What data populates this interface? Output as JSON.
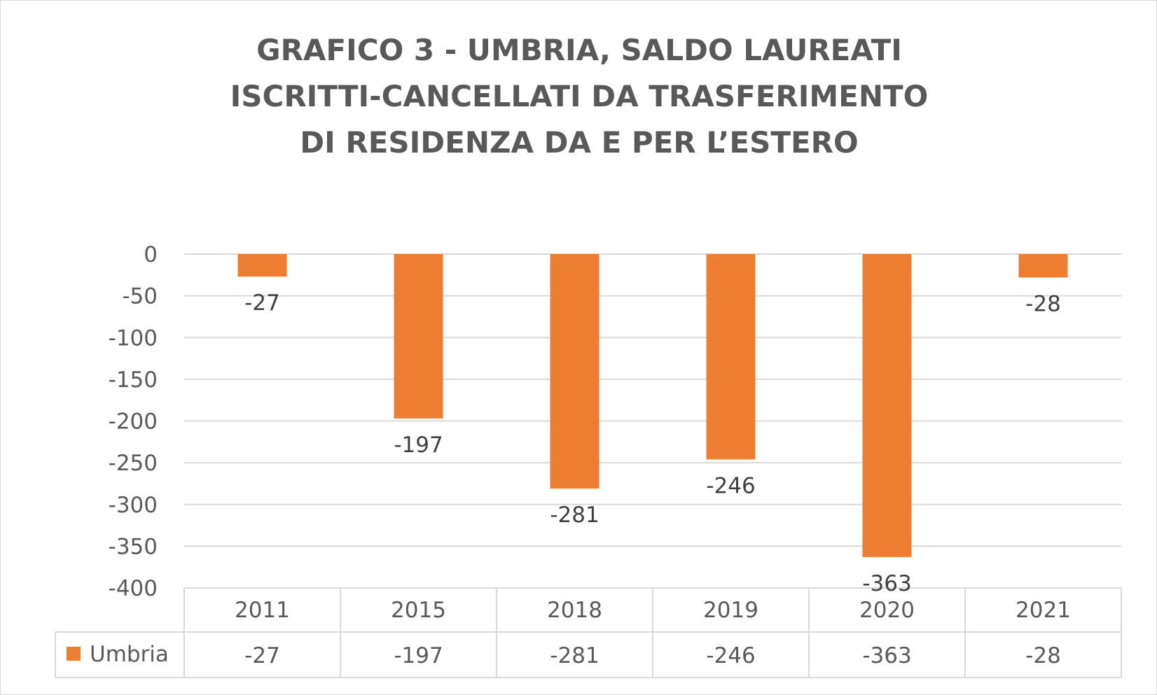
{
  "chart_data": {
    "type": "bar",
    "title_lines": [
      "GRAFICO 3 - UMBRIA, SALDO LAUREATI",
      "ISCRITTI-CANCELLATI DA TRASFERIMENTO",
      "DI RESIDENZA DA E PER L’ESTERO"
    ],
    "categories": [
      "2011",
      "2015",
      "2018",
      "2019",
      "2020",
      "2021"
    ],
    "series": [
      {
        "name": "Umbria",
        "values": [
          -27,
          -197,
          -281,
          -246,
          -363,
          -28
        ],
        "color": "#ED7D31"
      }
    ],
    "ylim": [
      -400,
      0
    ],
    "yticks": [
      0,
      -50,
      -100,
      -150,
      -200,
      -250,
      -300,
      -350,
      -400
    ],
    "grid": true,
    "data_table": true,
    "xlabel": "",
    "ylabel": ""
  }
}
